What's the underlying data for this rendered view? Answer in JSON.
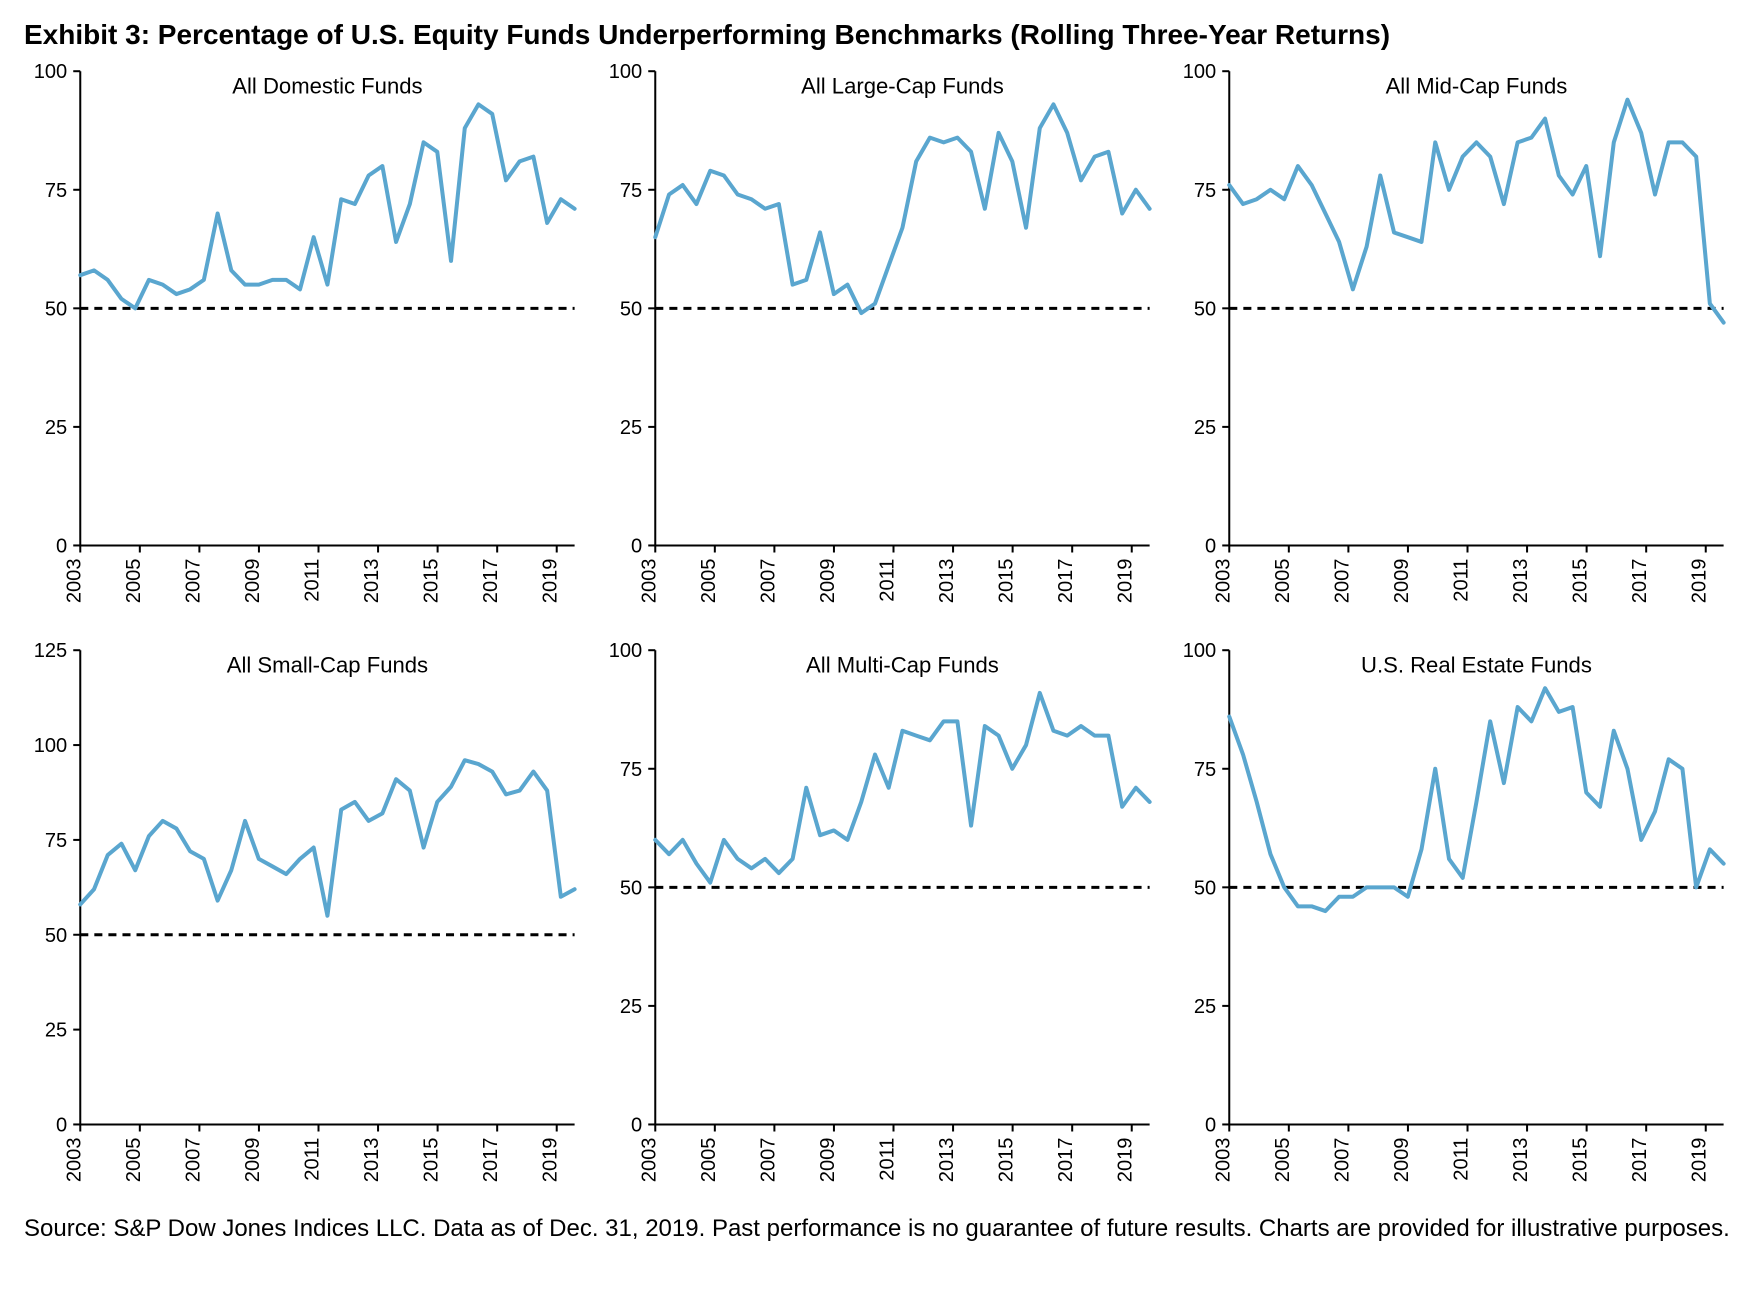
{
  "title": "Exhibit 3: Percentage of U.S. Equity Funds Underperforming Benchmarks (Rolling Three-Year Returns)",
  "footnote": "Source: S&P Dow Jones Indices LLC.  Data as of Dec. 31, 2019.  Past performance is no guarantee of future results.  Charts are provided for illustrative purposes.",
  "global": {
    "line_color": "#5aa6cf",
    "line_width": 4,
    "axis_color": "#000000",
    "axis_width": 2,
    "tick_color": "#000000",
    "tick_len": 7,
    "dash_color": "#000000",
    "dash_width": 3,
    "dash_pattern": "8 6",
    "dash_y": 50,
    "title_fontsize": 22,
    "title_weight": "400",
    "tick_fontsize": 20,
    "tick_weight": "400",
    "font_family": "Arial, Helvetica, sans-serif",
    "background_color": "#ffffff",
    "x_ticks": [
      2003,
      2005,
      2007,
      2009,
      2011,
      2013,
      2015,
      2017,
      2019
    ],
    "x_domain": [
      2003,
      2019.6
    ]
  },
  "panels": [
    {
      "title": "All Domestic Funds",
      "y_ticks": [
        0,
        25,
        50,
        75,
        100
      ],
      "y_domain": [
        0,
        100
      ],
      "values": [
        57,
        58,
        56,
        52,
        50,
        56,
        55,
        53,
        54,
        56,
        70,
        58,
        55,
        55,
        56,
        56,
        54,
        65,
        55,
        73,
        72,
        78,
        80,
        64,
        72,
        85,
        83,
        60,
        88,
        93,
        91,
        77,
        81,
        82,
        68,
        73,
        71
      ]
    },
    {
      "title": "All Large-Cap Funds",
      "y_ticks": [
        0,
        25,
        50,
        75,
        100
      ],
      "y_domain": [
        0,
        100
      ],
      "values": [
        65,
        74,
        76,
        72,
        79,
        78,
        74,
        73,
        71,
        72,
        55,
        56,
        66,
        53,
        55,
        49,
        51,
        59,
        67,
        81,
        86,
        85,
        86,
        83,
        71,
        87,
        81,
        67,
        88,
        93,
        87,
        77,
        82,
        83,
        70,
        75,
        71
      ]
    },
    {
      "title": "All Mid-Cap Funds",
      "y_ticks": [
        0,
        25,
        50,
        75,
        100
      ],
      "y_domain": [
        0,
        100
      ],
      "values": [
        76,
        72,
        73,
        75,
        73,
        80,
        76,
        70,
        64,
        54,
        63,
        78,
        66,
        65,
        64,
        85,
        75,
        82,
        85,
        82,
        72,
        85,
        86,
        90,
        78,
        74,
        80,
        61,
        85,
        94,
        87,
        74,
        85,
        85,
        82,
        51,
        47
      ]
    },
    {
      "title": "All Small-Cap Funds",
      "y_ticks": [
        0,
        25,
        50,
        75,
        100,
        125
      ],
      "y_domain": [
        0,
        125
      ],
      "values": [
        58,
        62,
        71,
        74,
        67,
        76,
        80,
        78,
        72,
        70,
        59,
        67,
        80,
        70,
        68,
        66,
        70,
        73,
        55,
        83,
        85,
        80,
        82,
        91,
        88,
        73,
        85,
        89,
        96,
        95,
        93,
        87,
        88,
        93,
        88,
        60,
        62
      ]
    },
    {
      "title": "All Multi-Cap Funds",
      "y_ticks": [
        0,
        25,
        50,
        75,
        100
      ],
      "y_domain": [
        0,
        100
      ],
      "values": [
        60,
        57,
        60,
        55,
        51,
        60,
        56,
        54,
        56,
        53,
        56,
        71,
        61,
        62,
        60,
        68,
        78,
        71,
        83,
        82,
        81,
        85,
        85,
        63,
        84,
        82,
        75,
        80,
        91,
        83,
        82,
        84,
        82,
        82,
        67,
        71,
        68
      ]
    },
    {
      "title": "U.S. Real Estate Funds",
      "y_ticks": [
        0,
        25,
        50,
        75,
        100
      ],
      "y_domain": [
        0,
        100
      ],
      "values": [
        86,
        78,
        68,
        57,
        50,
        46,
        46,
        45,
        48,
        48,
        50,
        50,
        50,
        48,
        58,
        75,
        56,
        52,
        68,
        85,
        72,
        88,
        85,
        92,
        87,
        88,
        70,
        67,
        83,
        75,
        60,
        66,
        77,
        75,
        50,
        58,
        55
      ]
    }
  ]
}
